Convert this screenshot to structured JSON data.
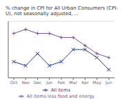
{
  "chart_data": {
    "type": "line",
    "title": "% change in CPI for All Urban Consumers (CPI-U), not seasonally adjusted, ...",
    "categories": [
      "Oct",
      "Nov",
      "Dec",
      "Jan",
      "Feb",
      "Mar",
      "Apr",
      "May",
      "Jun"
    ],
    "series": [
      {
        "name": "All items",
        "color": "#1f3a8f",
        "marker": "x",
        "values": [
          3.2,
          3.1,
          3.4,
          3.1,
          3.2,
          3.5,
          3.5,
          3.3,
          3.0
        ]
      },
      {
        "name": "All items less food and energy",
        "color": "#7b4f8e",
        "marker": "+",
        "values": [
          3.9,
          4.0,
          3.9,
          3.9,
          3.8,
          3.8,
          3.6,
          3.4,
          3.3
        ]
      }
    ],
    "ylim": [
      2.8,
      4.2
    ],
    "yticks": [
      3,
      3.5,
      4
    ],
    "grid": true,
    "tick_labels": "x",
    "legend": "bottom"
  }
}
